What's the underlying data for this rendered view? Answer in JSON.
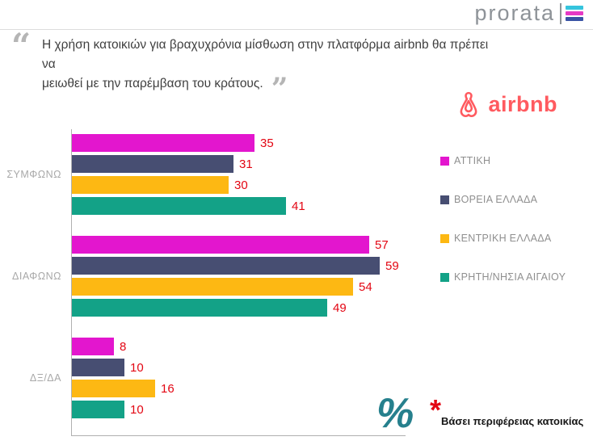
{
  "brand": {
    "name": "prorata"
  },
  "quote": {
    "open_mark": "“",
    "close_mark": "”",
    "line1": "Η χρήση κατοικιών για βραχυχρόνια μίσθωση στην πλατφόρμα airbnb θα πρέπει να",
    "line2": "μειωθεί με την παρέμβαση του κράτους."
  },
  "airbnb": {
    "label": "airbnb",
    "brand_color": "#ff5a5f"
  },
  "chart_data": {
    "type": "bar",
    "orientation": "horizontal",
    "categories": [
      "ΣΥΜΦΩΝΩ",
      "ΔΙΑΦΩΝΩ",
      "ΔΞ/ΔΑ"
    ],
    "series": [
      {
        "name": "ΑΤΤΙΚΗ",
        "color": "#e316ce",
        "values": [
          35,
          57,
          8
        ]
      },
      {
        "name": "ΒΟΡΕΙΑ ΕΛΛΑΔΑ",
        "color": "#474e72",
        "values": [
          31,
          59,
          10
        ]
      },
      {
        "name": "ΚΕΝΤΡΙΚΗ ΕΛΛΑΔΑ",
        "color": "#fdb813",
        "values": [
          30,
          54,
          16
        ]
      },
      {
        "name": "ΚΡΗΤΗ/ΝΗΣΙΑ ΑΙΓΑΙΟΥ",
        "color": "#13a287",
        "values": [
          41,
          49,
          10
        ]
      }
    ],
    "value_label_color": "#e30613",
    "xlim": [
      0,
      62
    ],
    "grid": false,
    "legend_position": "right"
  },
  "footnote": {
    "percent_symbol": "%",
    "asterisk": "*",
    "text": "Βάσει περιφέρειας κατοικίας"
  },
  "flag_colors": {
    "top": "#35c4dd",
    "middle": "#e63ac5",
    "bottom": "#3953a4"
  }
}
